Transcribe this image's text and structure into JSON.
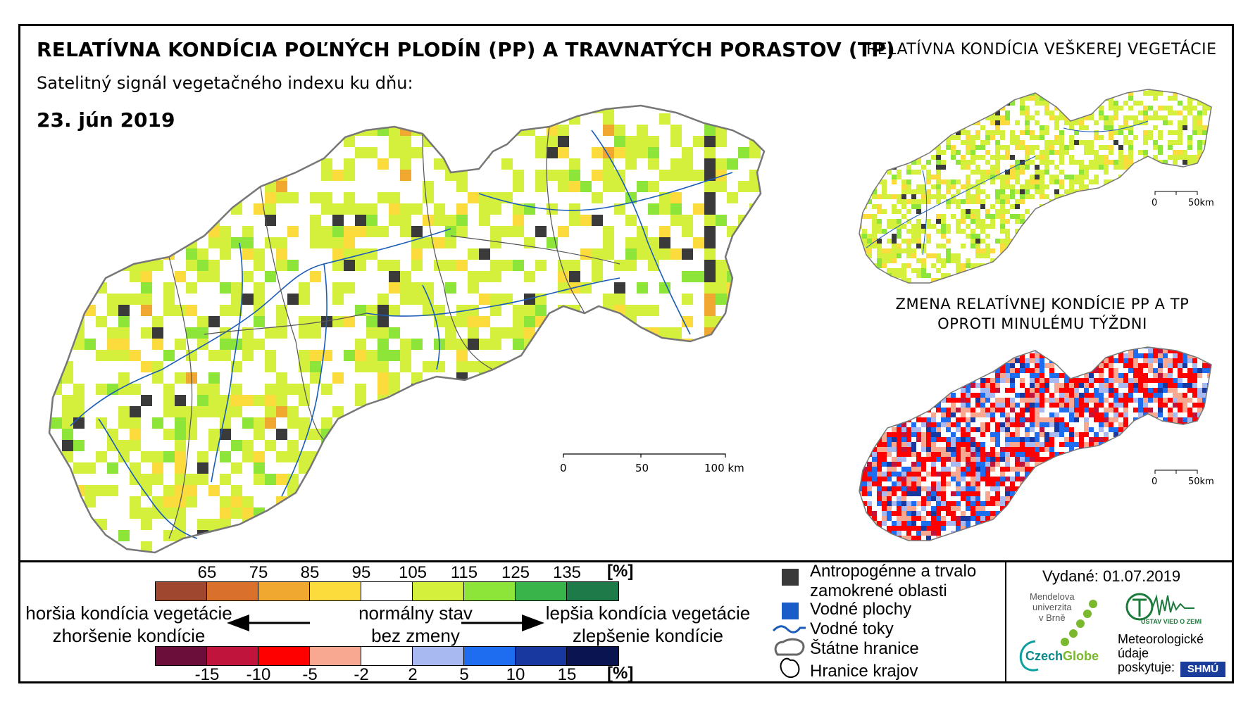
{
  "header": {
    "title": "RELATÍVNA KONDÍCIA POĽNÝCH PLODÍN (PP) A TRAVNATÝCH PORASTOV (TP)",
    "subtitle": "Satelitný signál vegetačného indexu ku dňu:",
    "date": "23. jún 2019"
  },
  "insets": {
    "vegetation_title": "RELATÍVNA KONDÍCIA VEŠKEREJ VEGETÁCIE",
    "change_title_line1": "ZMENA RELATÍVNEJ KONDÍCIE PP A TP",
    "change_title_line2": "OPROTI MINULÉMU TÝŽDNI",
    "scale_labels": [
      "0",
      "50km"
    ]
  },
  "main_map": {
    "scale_labels": [
      "0",
      "50",
      "100 km"
    ]
  },
  "legend": {
    "condition_scale": {
      "ticks": [
        "65",
        "75",
        "85",
        "95",
        "105",
        "115",
        "125",
        "135"
      ],
      "unit": "[%]",
      "colors": [
        "#a0472f",
        "#d9702b",
        "#f0a830",
        "#fbdc3c",
        "#ffffff",
        "#d4f03c",
        "#8ee53a",
        "#38b44a",
        "#1f7a4a"
      ]
    },
    "change_scale": {
      "ticks": [
        "-15",
        "-10",
        "-5",
        "-2",
        "2",
        "5",
        "10",
        "15"
      ],
      "unit": "[%]",
      "colors": [
        "#6b0f3a",
        "#c0143c",
        "#ff0000",
        "#f8a890",
        "#ffffff",
        "#a8b8f0",
        "#1e6cf0",
        "#1838a0",
        "#0a1450"
      ]
    },
    "worse_label_line1": "horšia kondícia vegetácie",
    "worse_label_line2": "zhoršenie kondície",
    "normal_label_line1": "normálny stav",
    "normal_label_line2": "bez zmeny",
    "better_label_line1": "lepšia kondícia vegetácie",
    "better_label_line2": "zlepšenie kondície",
    "items": {
      "anthropogenic_line1": "Antropogénne a trvalo",
      "anthropogenic_line2": "zamokrené oblasti",
      "water_bodies": "Vodné plochy",
      "rivers": "Vodné toky",
      "state_borders": "Štátne hranice",
      "region_borders": "Hranice krajov"
    }
  },
  "credits": {
    "issued": "Vydané: 01.07.2019",
    "mendel_line1": "Mendelova",
    "mendel_line2": "univerzita",
    "mendel_line3": "v Brně",
    "czechglobe_a": "Czech",
    "czechglobe_b": "Globe",
    "uvz": "ÚSTAV VIED O ZEMI",
    "meteo_line1": "Meteorologické",
    "meteo_line2": "údaje",
    "meteo_line3": "poskytuje:",
    "shmu": "SHMÚ"
  },
  "colors": {
    "border": "#000000",
    "river": "#1a5cb8",
    "urban": "#3a3a3a"
  }
}
